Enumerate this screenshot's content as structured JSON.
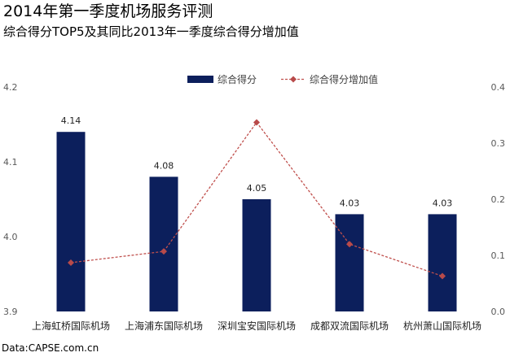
{
  "title": "2014年第一季度机场服务评测",
  "subtitle": "综合得分TOP5及其同比2013年一季度综合得分增加值",
  "source": "Data:CAPSE.com.cn",
  "colors": {
    "bar": "#0c1f5c",
    "line": "#c0504d",
    "marker": "#b84a4a",
    "axis_text": "#595959"
  },
  "chart_data": {
    "type": "bar",
    "categories": [
      "上海虹桥国际机场",
      "上海浦东国际机场",
      "深圳宝安国际机场",
      "成都双流国际机场",
      "杭州萧山国际机场"
    ],
    "series": [
      {
        "name": "综合得分",
        "type": "bar",
        "axis": "left",
        "values": [
          4.14,
          4.08,
          4.05,
          4.03,
          4.03
        ],
        "labels": [
          "4.14",
          "4.08",
          "4.05",
          "4.03",
          "4.03"
        ]
      },
      {
        "name": "综合得分增加值",
        "type": "line",
        "axis": "right",
        "line_style": "dashed",
        "marker": "diamond",
        "values": [
          0.087,
          0.107,
          0.337,
          0.12,
          0.063
        ]
      }
    ],
    "y_left": {
      "min": 3.9,
      "max": 4.2,
      "ticks": [
        "4.2",
        "4.1",
        "4.0",
        "3.9"
      ],
      "tick_values": [
        4.2,
        4.1,
        4.0,
        3.9
      ]
    },
    "y_right": {
      "min": 0,
      "max": 0.4,
      "ticks": [
        "0.4",
        "0.3",
        "0.2",
        "0.1",
        "0.0"
      ],
      "tick_values": [
        0.4,
        0.3,
        0.2,
        0.1,
        0.0
      ]
    },
    "legend_position": "top",
    "grid": false
  }
}
